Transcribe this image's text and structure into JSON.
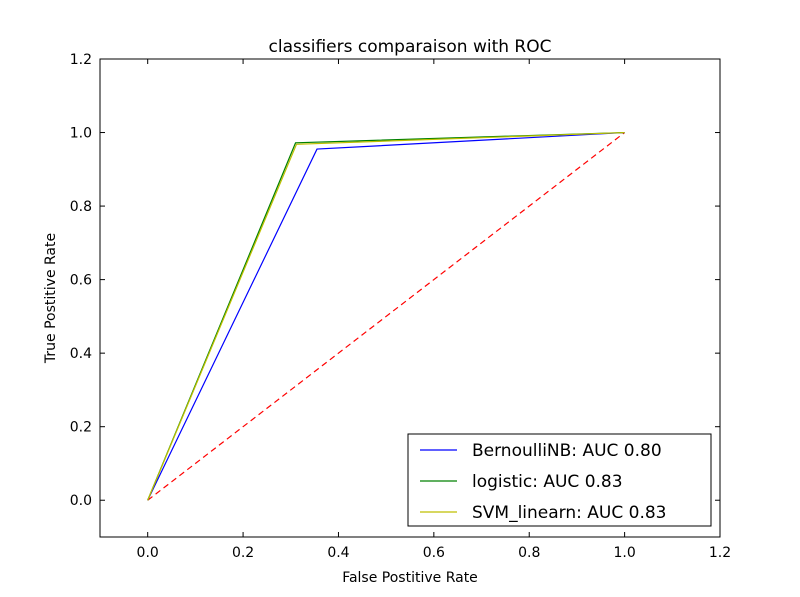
{
  "chart_data": {
    "type": "line",
    "title": "classifiers comparaison with ROC",
    "xlabel": "False Postitive Rate",
    "ylabel": "True Postitive Rate",
    "xlim": [
      -0.1,
      1.2
    ],
    "ylim": [
      -0.1,
      1.2
    ],
    "xticks": [
      0.0,
      0.2,
      0.4,
      0.6,
      0.8,
      1.0,
      1.2
    ],
    "xtick_labels": [
      "0.0",
      "0.2",
      "0.4",
      "0.6",
      "0.8",
      "1.0",
      "1.2"
    ],
    "yticks": [
      0.0,
      0.2,
      0.4,
      0.6,
      0.8,
      1.0,
      1.2
    ],
    "ytick_labels": [
      "0.0",
      "0.2",
      "0.4",
      "0.6",
      "0.8",
      "1.0",
      "1.2"
    ],
    "grid": false,
    "legend_position": "lower-right",
    "series": [
      {
        "name": "BernoulliNB: AUC 0.80",
        "color": "#0000ff",
        "x": [
          0.0,
          0.355,
          1.0
        ],
        "y": [
          0.0,
          0.955,
          1.0
        ]
      },
      {
        "name": "logistic: AUC 0.83",
        "color": "#008000",
        "x": [
          0.0,
          0.31,
          1.0
        ],
        "y": [
          0.0,
          0.972,
          1.0
        ]
      },
      {
        "name": "SVM_linearn: AUC 0.83",
        "color": "#bfbf00",
        "x": [
          0.0,
          0.312,
          1.0
        ],
        "y": [
          0.0,
          0.968,
          1.0
        ]
      }
    ],
    "reference_line": {
      "color": "#ff0000",
      "style": "dashed",
      "x": [
        0.0,
        1.0
      ],
      "y": [
        0.0,
        1.0
      ]
    }
  }
}
